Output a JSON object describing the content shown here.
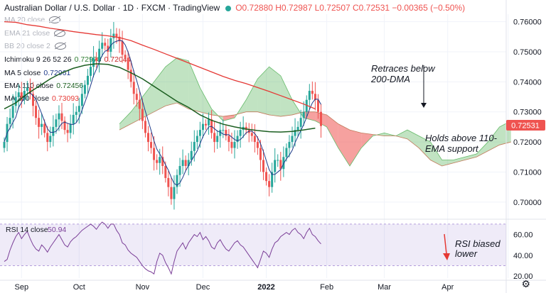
{
  "header": {
    "symbol": "Australian Dollar / U.S. Dollar · 1D · FXCM · TradingView",
    "ohlc": "O0.72880 H0.72987 L0.72507 C0.72531 −0.00365 (−0.50%)"
  },
  "legend": [
    {
      "name": "MA 20 close",
      "value": "",
      "hidden": true
    },
    {
      "name": "EMA 21 close",
      "value": "",
      "hidden": true
    },
    {
      "name": "BB 20 close 2",
      "value": "",
      "hidden": true
    },
    {
      "name": "Ichimoku 9 26 52 26",
      "value": "0.72978",
      "value2": "0.72044",
      "color": "#2e7d32",
      "color2": "#c62828"
    },
    {
      "name": "MA 5 close",
      "value": "0.72961",
      "color": "#1e3a8a"
    },
    {
      "name": "EMA 110 close",
      "value": "0.72456",
      "color": "#1b5e20"
    },
    {
      "name": "MA 200 close",
      "value": "0.73093",
      "color": "#e53935"
    }
  ],
  "price_badge": "0.72531",
  "annotations": {
    "top": [
      "Retraces below",
      "200-DMA"
    ],
    "bottom": [
      "Holds above 110-",
      "EMA support"
    ],
    "rsi": [
      "RSI biased",
      "lower"
    ]
  },
  "rsi_label": {
    "name": "RSI 14 close",
    "value": "50.94"
  },
  "colors": {
    "up": "#26a69a",
    "down": "#ef5350",
    "ma200": "#e53935",
    "ema110": "#1b5e20",
    "ma5": "#1e3a8a",
    "rsi": "#7b3f98"
  },
  "chart_data": [
    {
      "type": "candlestick",
      "title": "Australian Dollar / U.S. Dollar",
      "ylim": [
        0.695,
        0.7625
      ],
      "yticks": [
        "0.76000",
        "0.75000",
        "0.74000",
        "0.73000",
        "0.72000",
        "0.71000",
        "0.70000"
      ],
      "xticks": [
        "Sep",
        "Oct",
        "Nov",
        "Dec",
        "2022",
        "Feb",
        "Mar",
        "Apr"
      ],
      "x_month_pos": [
        0,
        20,
        42,
        63,
        85,
        106,
        126,
        148,
        169
      ],
      "close": [
        0.72,
        0.726,
        0.728,
        0.732,
        0.735,
        0.7365,
        0.734,
        0.737,
        0.738,
        0.736,
        0.732,
        0.728,
        0.725,
        0.726,
        0.723,
        0.72,
        0.722,
        0.725,
        0.7275,
        0.7295,
        0.727,
        0.724,
        0.723,
        0.726,
        0.729,
        0.73,
        0.732,
        0.736,
        0.739,
        0.742,
        0.745,
        0.748,
        0.747,
        0.751,
        0.753,
        0.752,
        0.75,
        0.7545,
        0.756,
        0.755,
        0.7535,
        0.749,
        0.748,
        0.744,
        0.74,
        0.736,
        0.734,
        0.731,
        0.727,
        0.723,
        0.72,
        0.718,
        0.714,
        0.713,
        0.715,
        0.712,
        0.708,
        0.705,
        0.701,
        0.705,
        0.709,
        0.712,
        0.714,
        0.712,
        0.714,
        0.717,
        0.72,
        0.722,
        0.724,
        0.726,
        0.7255,
        0.7275,
        0.723,
        0.72,
        0.722,
        0.724,
        0.724,
        0.722,
        0.72,
        0.718,
        0.72,
        0.722,
        0.724,
        0.725,
        0.724,
        0.723,
        0.722,
        0.72,
        0.718,
        0.714,
        0.71,
        0.707,
        0.705,
        0.71,
        0.714,
        0.714,
        0.711,
        0.715,
        0.718,
        0.72,
        0.722,
        0.724,
        0.725,
        0.728,
        0.73,
        0.734,
        0.737,
        0.736,
        0.734,
        0.73,
        0.7253
      ],
      "ma200": [
        0.76,
        0.7598,
        0.759,
        0.7585,
        0.7578,
        0.7573,
        0.7567,
        0.7562,
        0.7557,
        0.7553,
        0.7547,
        0.7537,
        0.7522,
        0.7508,
        0.7493,
        0.7478,
        0.7463,
        0.7448,
        0.7433,
        0.7418,
        0.7405,
        0.7394,
        0.7381,
        0.7368,
        0.7354,
        0.734,
        0.7326,
        0.731
      ],
      "ema110": [
        0.731,
        0.733,
        0.736,
        0.7385,
        0.741,
        0.743,
        0.7445,
        0.7455,
        0.746,
        0.7458,
        0.7448,
        0.743,
        0.741,
        0.7385,
        0.736,
        0.7335,
        0.7315,
        0.729,
        0.7272,
        0.7259,
        0.725,
        0.7243,
        0.7238,
        0.7234,
        0.7233,
        0.7235,
        0.724,
        0.7246
      ],
      "cloud_a": [
        0.726,
        0.73,
        0.735,
        0.74,
        0.745,
        0.748,
        0.747,
        0.738,
        0.731,
        0.727,
        0.728,
        0.734,
        0.741,
        0.745,
        0.742,
        0.734,
        0.728,
        0.727,
        0.725,
        0.718,
        0.712,
        0.718,
        0.722,
        0.723,
        0.722,
        0.724,
        0.722,
        0.72,
        0.714,
        0.714,
        0.715,
        0.716,
        0.72,
        0.725,
        0.727
      ],
      "cloud_b": [
        0.724,
        0.726,
        0.728,
        0.73,
        0.732,
        0.733,
        0.731,
        0.73,
        0.729,
        0.7285,
        0.729,
        0.73,
        0.73,
        0.729,
        0.7285,
        0.729,
        0.73,
        0.73,
        0.729,
        0.726,
        0.724,
        0.723,
        0.7225,
        0.722,
        0.722,
        0.721,
        0.718,
        0.714,
        0.712,
        0.713,
        0.714,
        0.715,
        0.717,
        0.719,
        0.72
      ]
    },
    {
      "type": "line",
      "title": "RSI 14 close",
      "ylim": [
        18,
        72
      ],
      "yticks": [
        "60.00",
        "40.00",
        "20.00"
      ],
      "band": [
        30,
        70
      ],
      "values": [
        34,
        36,
        45,
        52,
        58,
        62,
        56,
        60,
        63,
        56,
        50,
        46,
        44,
        50,
        47,
        43,
        48,
        52,
        56,
        60,
        55,
        50,
        48,
        53,
        56,
        58,
        61,
        64,
        66,
        68,
        70,
        68,
        65,
        69,
        72,
        70,
        66,
        70,
        70,
        64,
        60,
        52,
        50,
        45,
        42,
        40,
        38,
        34,
        30,
        27,
        25,
        24,
        22,
        34,
        42,
        40,
        33,
        28,
        22,
        34,
        44,
        48,
        52,
        46,
        52,
        56,
        60,
        58,
        62,
        55,
        58,
        54,
        48,
        46,
        52,
        55,
        50,
        46,
        44,
        48,
        52,
        54,
        50,
        48,
        44,
        40,
        36,
        32,
        28,
        36,
        44,
        42,
        38,
        46,
        52,
        54,
        58,
        60,
        62,
        60,
        64,
        66,
        62,
        60,
        56,
        62,
        66,
        60,
        58,
        54,
        50.94
      ]
    }
  ]
}
